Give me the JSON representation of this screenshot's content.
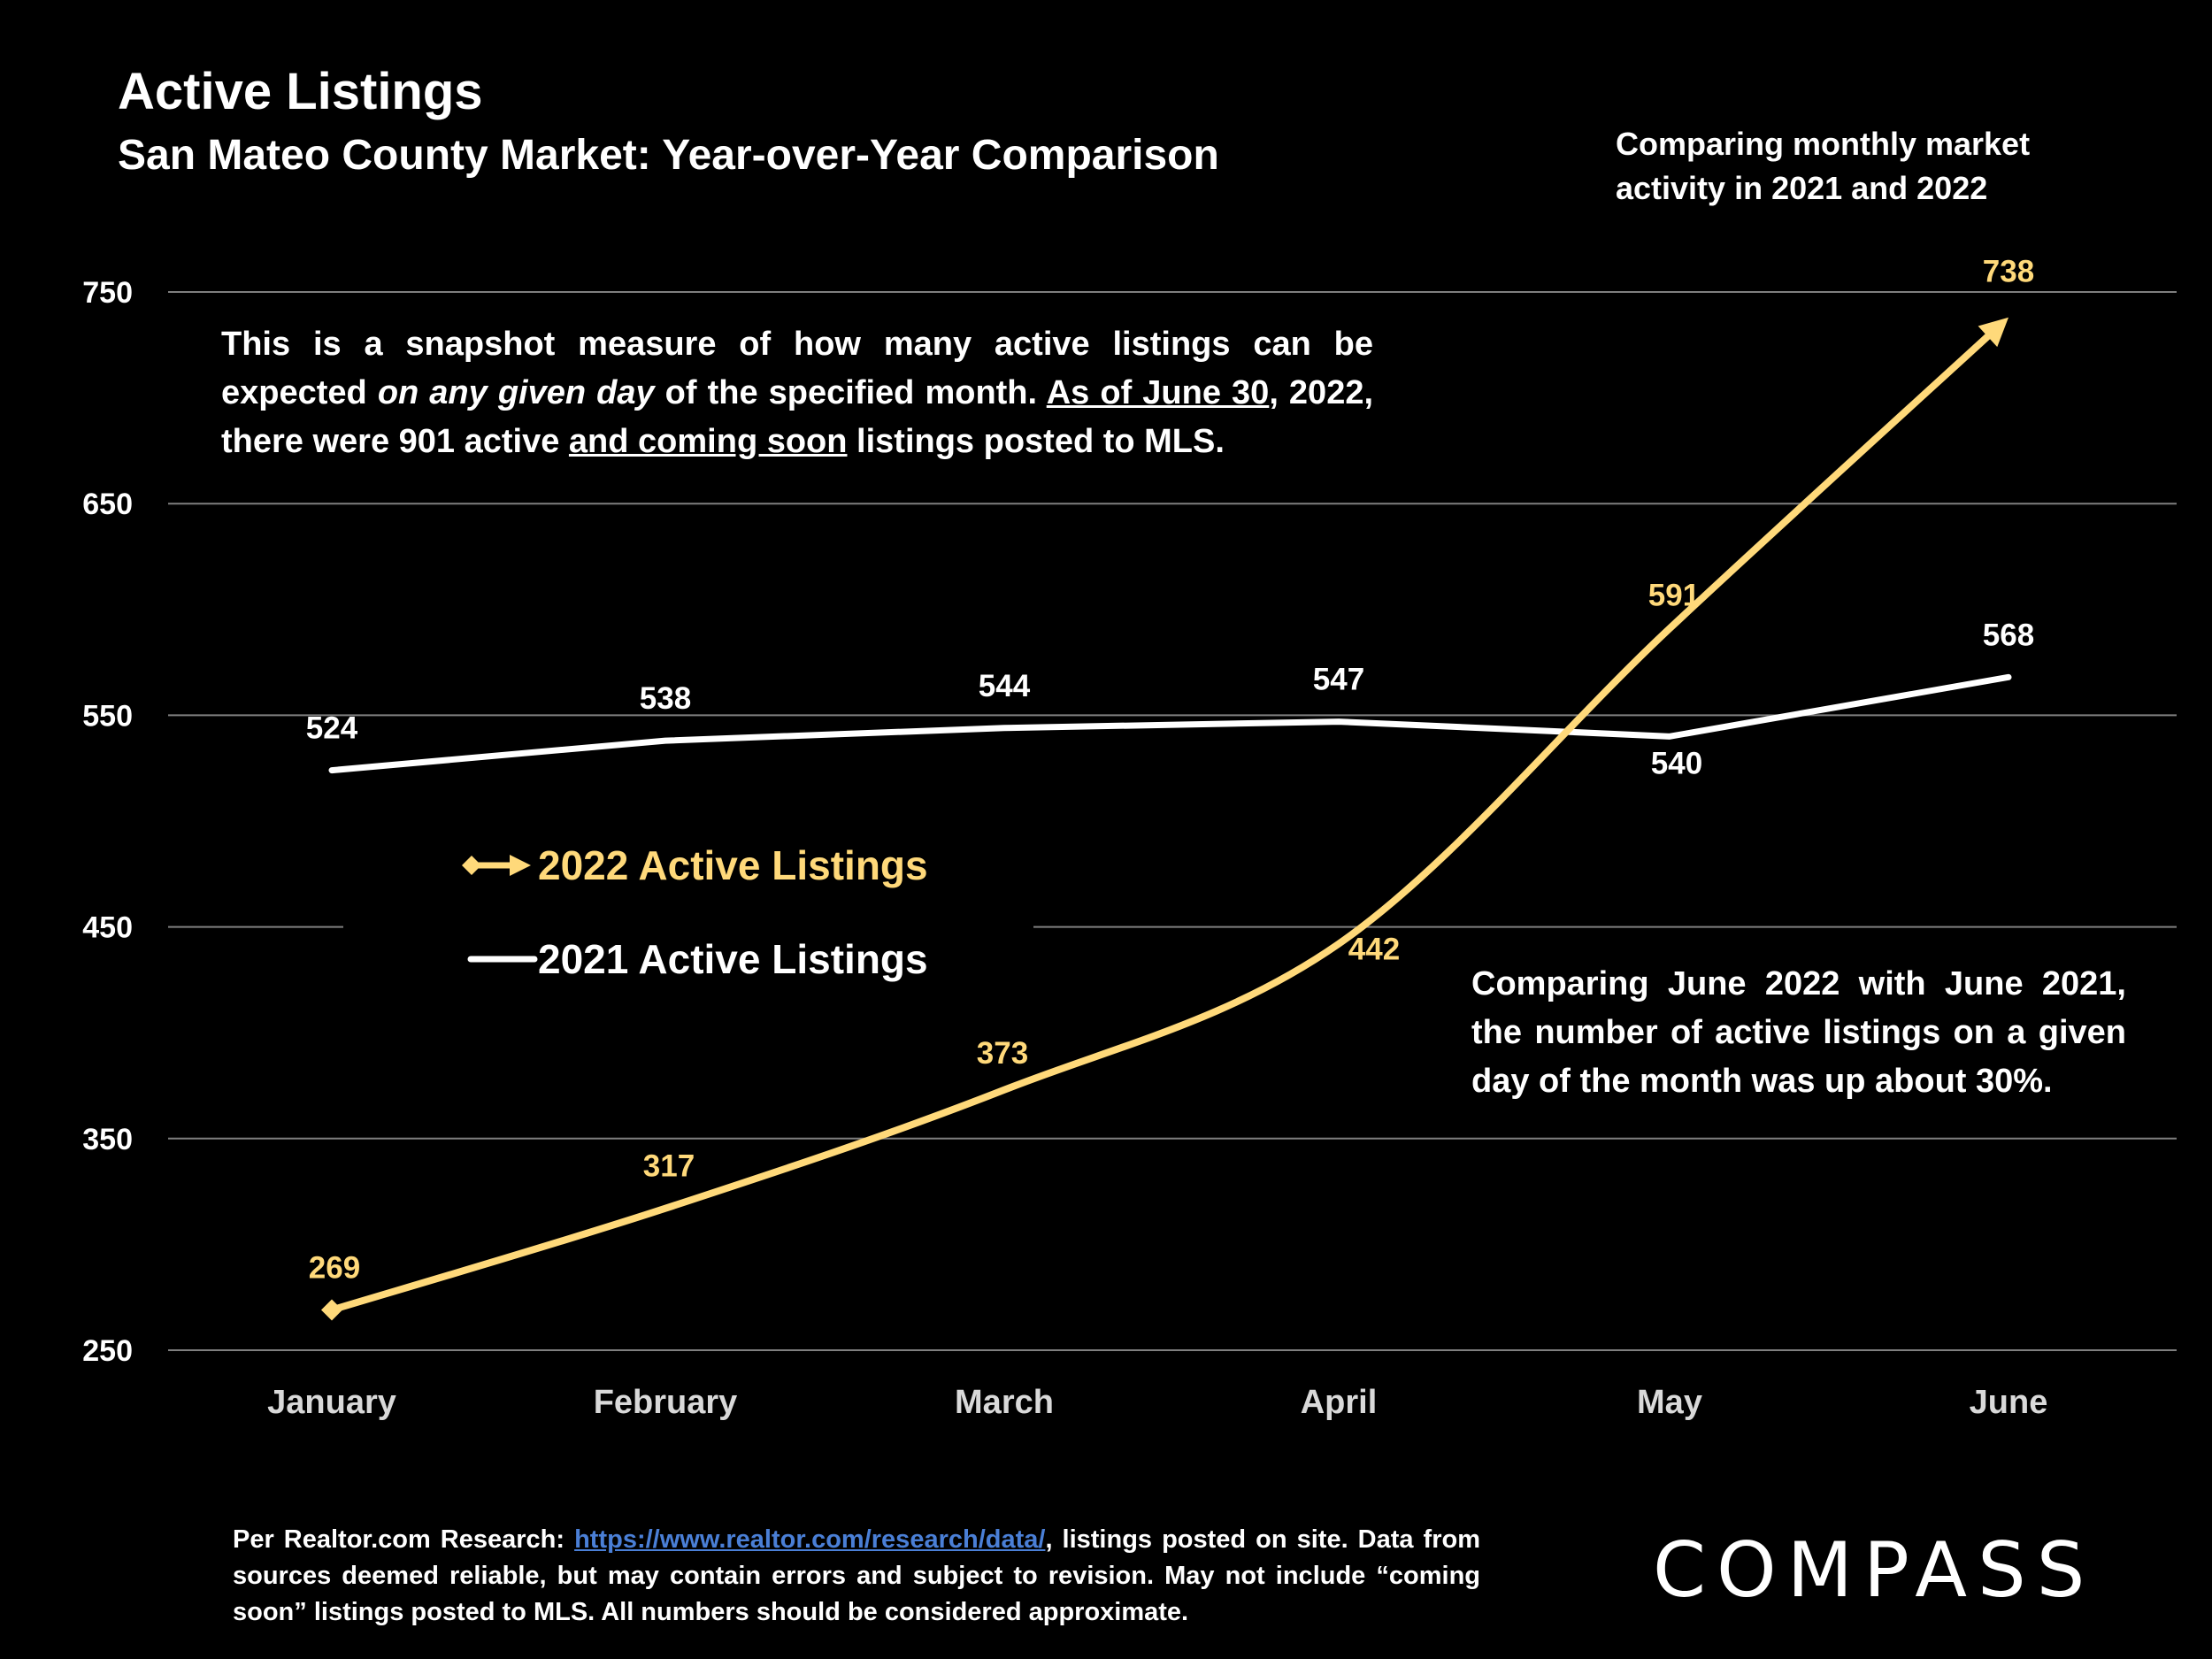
{
  "title": "Active Listings",
  "subtitle": "San Mateo County Market: Year-over-Year Comparison",
  "top_note": {
    "line1": "Comparing monthly market",
    "line2": "activity in 2021 and 2022"
  },
  "snapshot_note": {
    "p1": "This is a snapshot measure of how many active listings can be expected ",
    "p2_italic": "on any given day",
    "p3": " of the specified month. ",
    "p4_underline": "As of June 30",
    "p5": ", 2022, there were 901 active ",
    "p6_underline": "and coming soon",
    "p7": " listings posted to MLS."
  },
  "compare_note": "Comparing June 2022 with June 2021, the number of active listings on a given day of the month was up about 30%.",
  "footer": {
    "prefix": "Per Realtor.com Research: ",
    "link": "https://www.realtor.com/research/data/",
    "suffix": ", listings posted on site. Data from sources deemed reliable, but may contain errors and subject to revision. May not include “coming soon” listings posted to MLS. All numbers should be considered approximate."
  },
  "logo": "COMPASS",
  "colors": {
    "series_2022": "#ffd97a",
    "series_2021": "#ffffff",
    "grid": "#7f7f7f",
    "background": "#000000",
    "link": "#4a7fd6"
  },
  "chart_data": {
    "type": "line",
    "categories": [
      "January",
      "February",
      "March",
      "April",
      "May",
      "June"
    ],
    "ylim": [
      250,
      750
    ],
    "yticks": [
      250,
      350,
      450,
      550,
      650,
      750
    ],
    "grid": true,
    "legend_position": "center-left",
    "series": [
      {
        "name": "2022 Active Listings",
        "values": [
          269,
          317,
          373,
          442,
          591,
          738
        ],
        "labels": [
          "269",
          "317",
          "373",
          "442",
          "591",
          "738"
        ],
        "marker": "diamond-start, arrow-end"
      },
      {
        "name": "2021 Active Listings",
        "values": [
          524,
          538,
          544,
          547,
          540,
          568
        ],
        "labels": [
          "524",
          "538",
          "544",
          "547",
          "540",
          "568"
        ]
      }
    ]
  }
}
